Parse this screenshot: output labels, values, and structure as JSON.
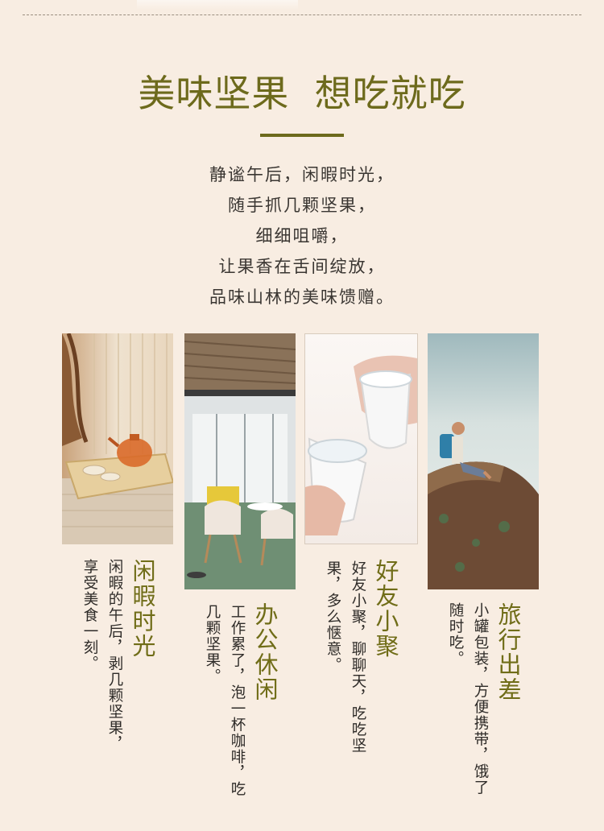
{
  "title": "美味坚果  想吃就吃",
  "intro_lines": [
    "静谧午后，闲暇时光，",
    "随手抓几颗坚果，",
    "细细咀嚼，",
    "让果香在舌间绽放，",
    "品味山林的美味馈赠。"
  ],
  "scenes": [
    {
      "title": "闲暇时光",
      "text": "闲暇的午后，剥几颗坚果，享受美食一刻。",
      "image": "teapot-table-photo"
    },
    {
      "title": "办公休闲",
      "text": "工作累了，泡一杯咖啡，吃几颗坚果。",
      "image": "office-lounge-photo"
    },
    {
      "title": "好友小聚",
      "text": "好友小聚，聊聊天，吃吃坚果，多么惬意。",
      "image": "cups-cheers-photo"
    },
    {
      "title": "旅行出差",
      "text": "小罐包装，方便携带，饿了随时吃。",
      "image": "hiker-rock-photo"
    }
  ],
  "colors": {
    "background": "#f8ede2",
    "accent_olive": "#6d6a1c",
    "body_text": "#2e2b28"
  }
}
